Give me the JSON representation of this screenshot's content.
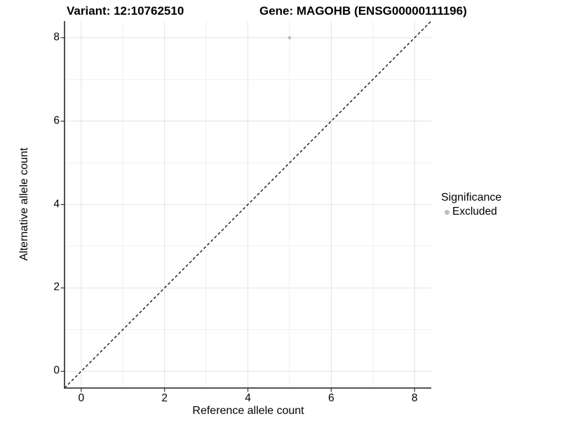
{
  "figure": {
    "background": "#ffffff"
  },
  "chart_data": {
    "type": "scatter",
    "titles": {
      "left": "Variant: 12:10762510",
      "right": "Gene: MAGOHB (ENSG00000111196)"
    },
    "xlabel": "Reference allele count",
    "ylabel": "Alternative allele count",
    "xlim": [
      -0.4,
      8.4
    ],
    "ylim": [
      -0.4,
      8.4
    ],
    "xticks": [
      0,
      2,
      4,
      6,
      8
    ],
    "yticks": [
      0,
      2,
      4,
      6,
      8
    ],
    "grid": {
      "min": 0,
      "max": 8,
      "major_step": 2,
      "minor_step": 1,
      "major_color": "#e2e2e2",
      "minor_color": "#f0f0f0"
    },
    "reference_line": {
      "type": "identity",
      "style": "dashed",
      "color": "#000000",
      "from": [
        -0.4,
        -0.4
      ],
      "to": [
        8.4,
        8.4
      ]
    },
    "series": [
      {
        "name": "Excluded",
        "color": "#bdbdbd",
        "point_radius": 2.4,
        "points": [
          [
            5,
            8
          ]
        ]
      }
    ],
    "legend": {
      "title": "Significance",
      "position": "right",
      "entries": [
        {
          "label": "Excluded",
          "color": "#bdbdbd"
        }
      ]
    },
    "axis": {
      "line_color": "#3c3c3c",
      "tick_color": "#333333"
    }
  }
}
